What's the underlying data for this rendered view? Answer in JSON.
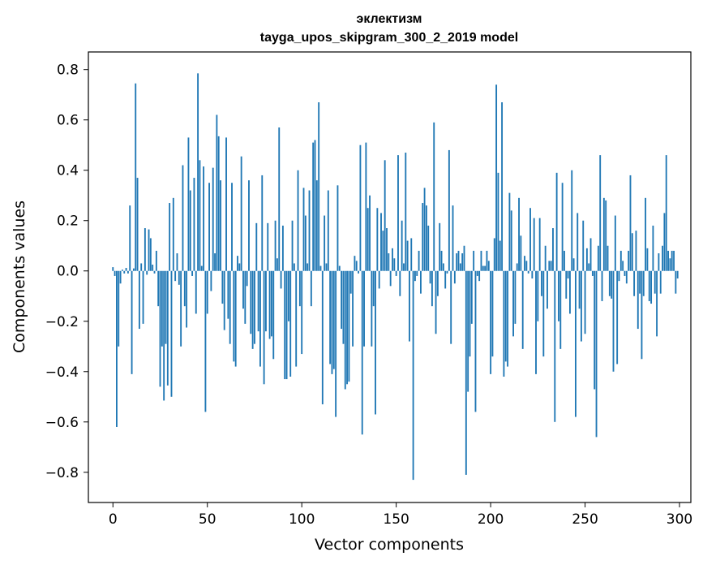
{
  "chart_data": {
    "type": "bar",
    "title": "эклектизм",
    "subtitle": "tayga_upos_skipgram_300_2_2019 model",
    "xlabel": "Vector components",
    "ylabel": "Components values",
    "xlim": [
      -13,
      306
    ],
    "ylim": [
      -0.92,
      0.87
    ],
    "xticks": [
      0,
      50,
      100,
      150,
      200,
      250,
      300
    ],
    "yticks": [
      0.8,
      0.6,
      0.4,
      0.2,
      0.0,
      -0.2,
      -0.4,
      -0.6,
      -0.8
    ],
    "ytick_labels": [
      "0.8",
      "0.6",
      "0.4",
      "0.2",
      "0.0",
      "−0.2",
      "−0.4",
      "−0.6",
      "−0.8"
    ],
    "grid": false,
    "color": "#1f77b4",
    "values": [
      0.015,
      -0.02,
      -0.62,
      -0.3,
      -0.05,
      0.005,
      -0.01,
      0.012,
      -0.01,
      0.26,
      -0.41,
      0.01,
      0.745,
      0.37,
      -0.23,
      0.03,
      -0.21,
      0.17,
      -0.015,
      0.165,
      0.13,
      0.025,
      -0.01,
      0.08,
      -0.14,
      -0.46,
      -0.3,
      -0.515,
      -0.29,
      -0.455,
      0.27,
      -0.5,
      0.29,
      -0.04,
      0.07,
      -0.055,
      -0.3,
      0.42,
      -0.14,
      -0.225,
      0.53,
      0.32,
      -0.02,
      0.37,
      -0.17,
      0.785,
      0.44,
      0.02,
      0.415,
      -0.56,
      -0.17,
      0.35,
      -0.08,
      0.41,
      0.07,
      0.62,
      0.535,
      0.36,
      -0.13,
      -0.235,
      0.53,
      -0.19,
      -0.29,
      0.35,
      -0.36,
      -0.38,
      0.06,
      0.03,
      0.455,
      -0.15,
      -0.21,
      -0.06,
      0.36,
      -0.25,
      -0.31,
      -0.29,
      0.19,
      -0.24,
      -0.38,
      0.38,
      -0.45,
      -0.24,
      0.19,
      -0.27,
      -0.26,
      -0.35,
      0.2,
      0.05,
      0.57,
      -0.07,
      0.18,
      -0.43,
      -0.43,
      -0.2,
      -0.42,
      0.2,
      0.03,
      -0.38,
      0.4,
      -0.14,
      -0.33,
      0.33,
      0.22,
      0.03,
      0.32,
      -0.14,
      0.51,
      0.52,
      0.36,
      0.67,
      0.02,
      -0.53,
      0.22,
      0.03,
      0.32,
      -0.37,
      -0.41,
      -0.39,
      -0.58,
      0.34,
      0.02,
      -0.23,
      -0.29,
      -0.47,
      -0.45,
      -0.44,
      -0.09,
      -0.3,
      0.06,
      0.04,
      -0.01,
      0.5,
      -0.65,
      -0.3,
      0.51,
      0.25,
      0.3,
      -0.3,
      -0.14,
      -0.57,
      0.25,
      -0.07,
      0.23,
      0.16,
      0.44,
      0.17,
      0.07,
      -0.06,
      0.09,
      0.05,
      -0.02,
      0.46,
      -0.1,
      0.2,
      0.03,
      0.47,
      0.12,
      -0.28,
      0.13,
      -0.83,
      -0.04,
      -0.02,
      0.08,
      -0.09,
      0.27,
      0.33,
      0.26,
      0.18,
      -0.05,
      -0.14,
      0.59,
      -0.25,
      -0.1,
      0.19,
      0.08,
      0.03,
      -0.07,
      -0.01,
      0.48,
      -0.29,
      0.26,
      -0.05,
      0.07,
      0.08,
      0.03,
      0.07,
      0.1,
      -0.81,
      -0.48,
      -0.34,
      -0.21,
      0.08,
      -0.56,
      -0.02,
      -0.04,
      0.08,
      0.02,
      0.02,
      0.08,
      0.04,
      -0.41,
      -0.34,
      0.13,
      0.74,
      0.39,
      0.12,
      0.67,
      -0.42,
      -0.36,
      -0.38,
      0.31,
      0.24,
      -0.26,
      -0.21,
      0.03,
      0.29,
      0.14,
      -0.31,
      0.06,
      0.04,
      -0.01,
      0.25,
      -0.03,
      0.21,
      -0.41,
      -0.2,
      0.21,
      -0.1,
      -0.34,
      0.1,
      -0.15,
      0.04,
      0.04,
      0.17,
      -0.6,
      0.39,
      -0.2,
      -0.31,
      0.35,
      0.08,
      -0.11,
      -0.03,
      -0.17,
      0.4,
      0.05,
      -0.58,
      0.23,
      -0.15,
      -0.28,
      0.2,
      -0.25,
      0.09,
      0.03,
      0.13,
      -0.02,
      -0.47,
      -0.66,
      0.1,
      0.46,
      -0.12,
      0.29,
      0.28,
      0.1,
      -0.1,
      -0.11,
      -0.4,
      0.22,
      -0.37,
      -0.04,
      0.08,
      0.04,
      -0.02,
      -0.05,
      0.08,
      0.38,
      0.15,
      -0.1,
      0.16,
      -0.23,
      -0.09,
      -0.35,
      -0.1,
      0.29,
      0.09,
      -0.12,
      -0.13,
      0.18,
      -0.09,
      -0.26,
      0.07,
      -0.09,
      0.1,
      0.23,
      0.46,
      0.08,
      0.05,
      0.08,
      0.08,
      -0.09,
      -0.03
    ]
  }
}
